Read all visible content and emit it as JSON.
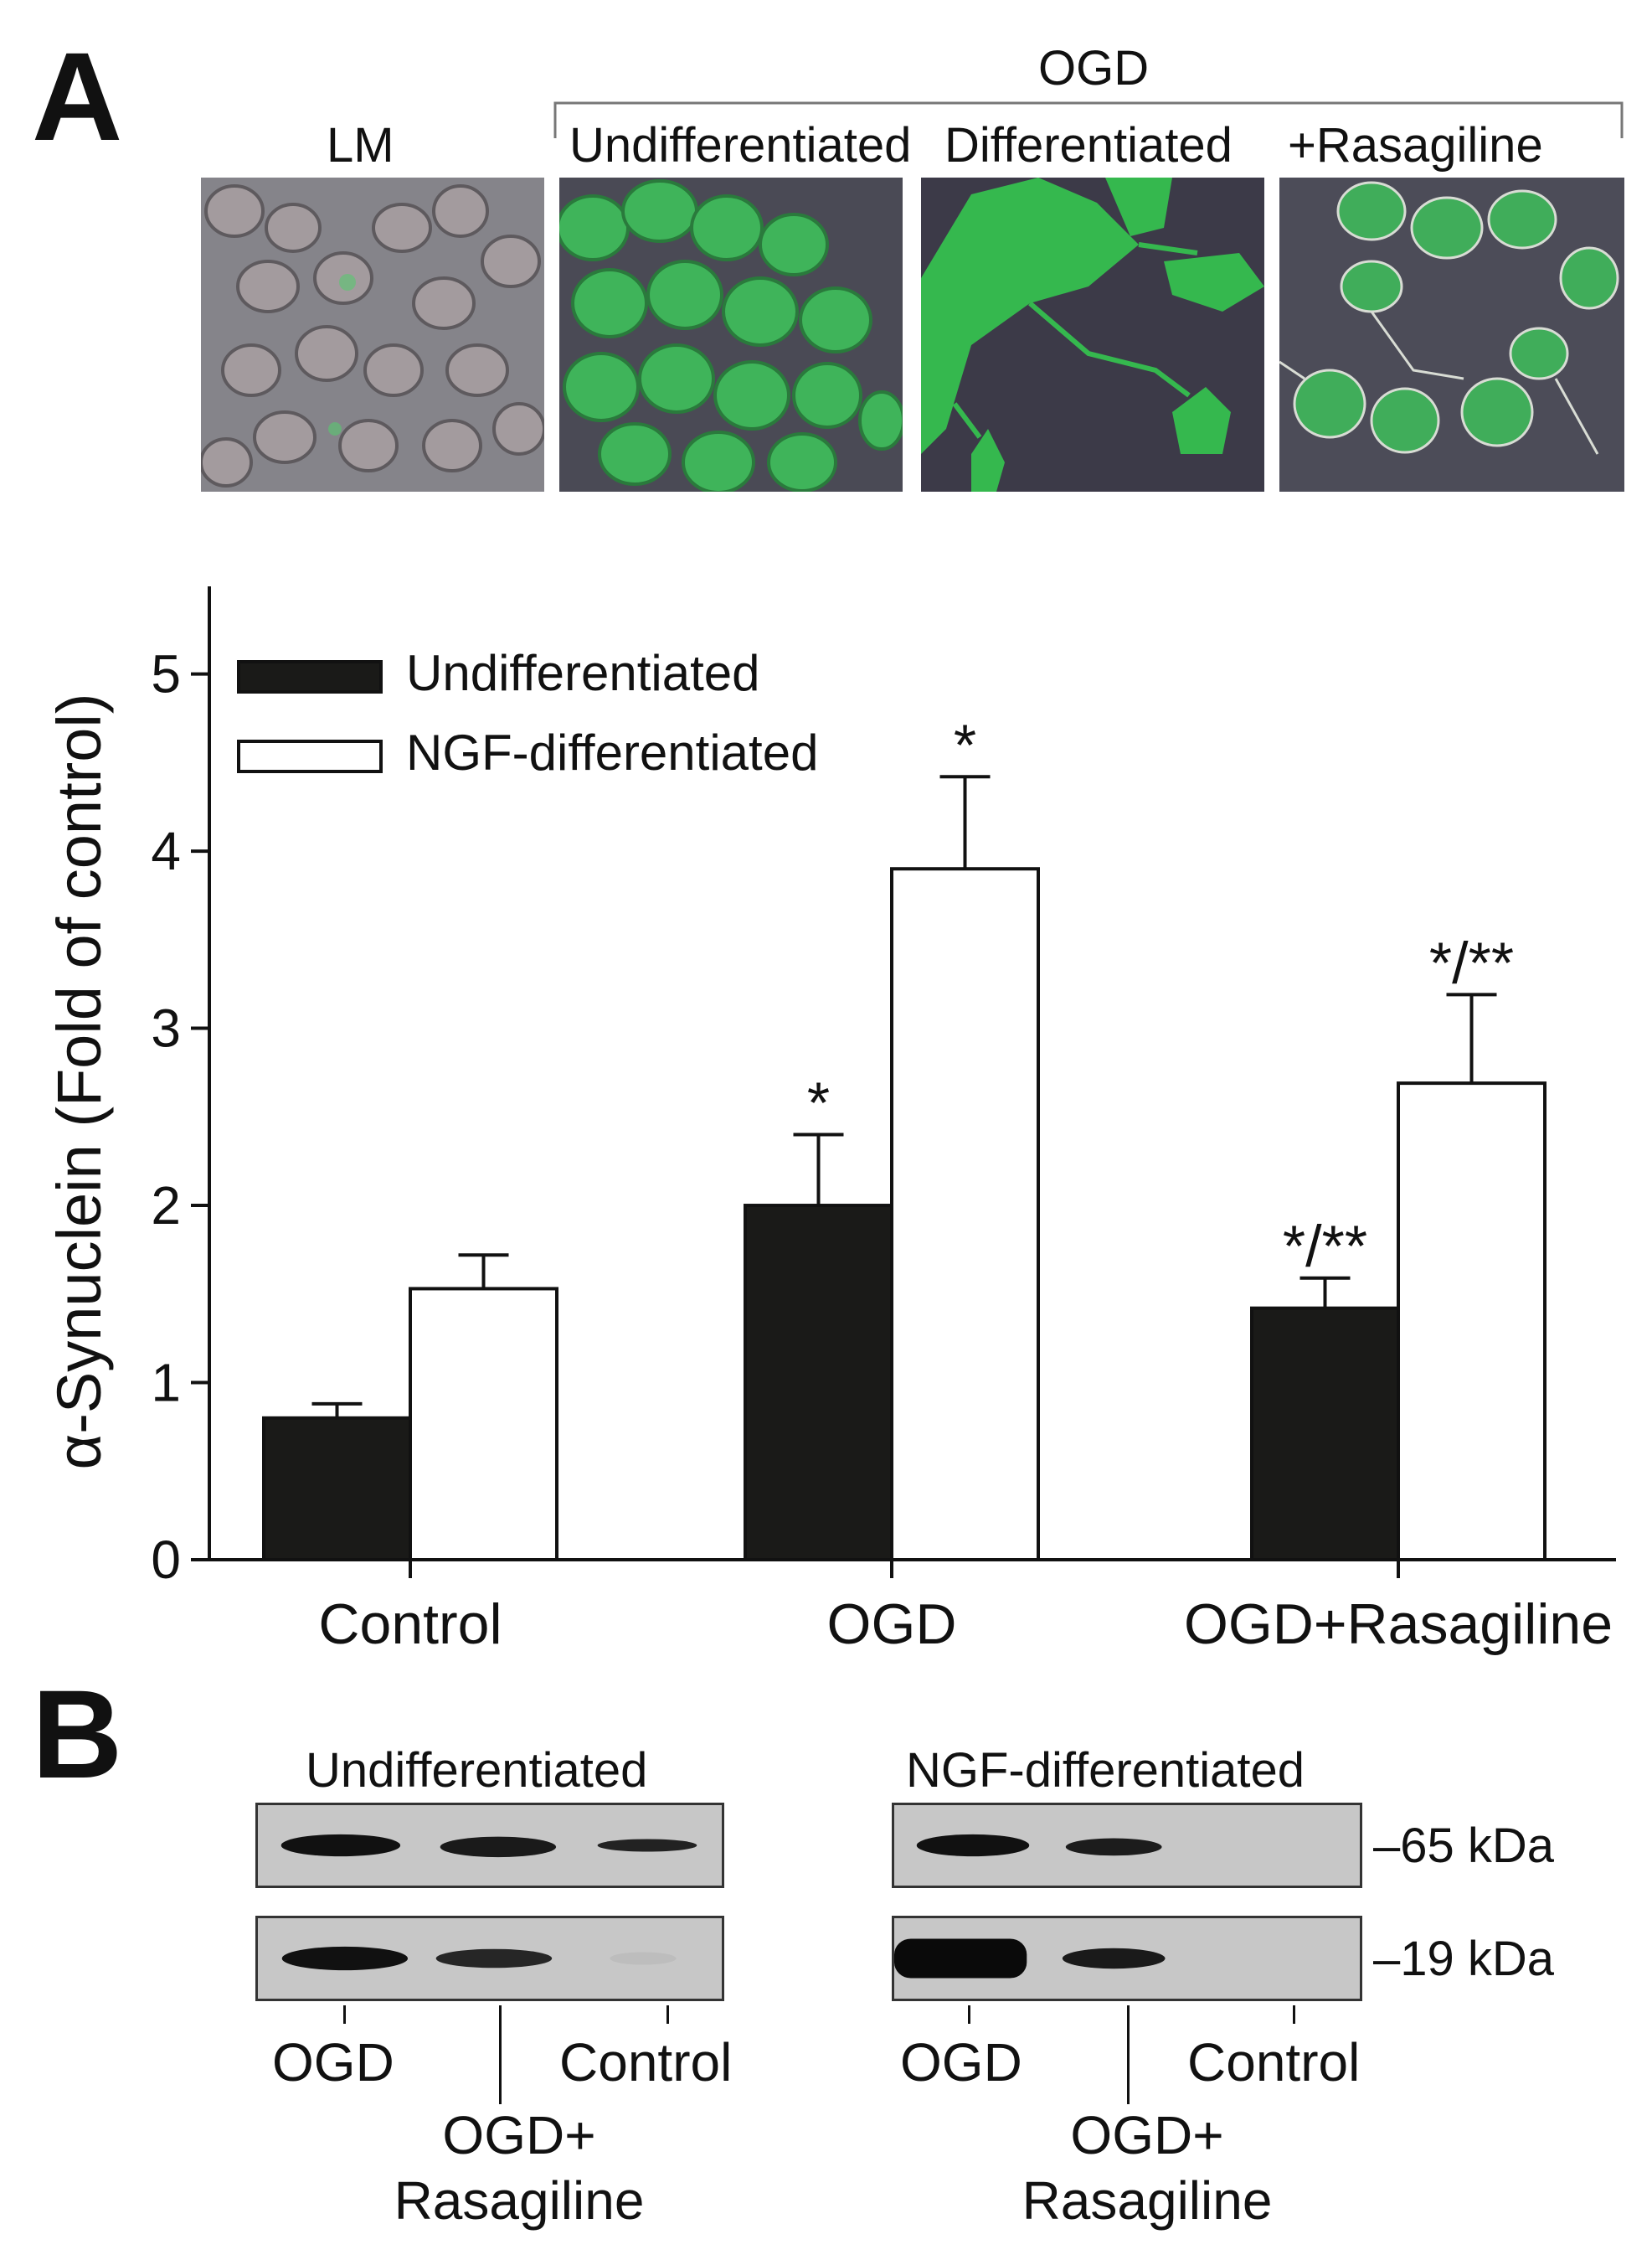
{
  "panel_a": {
    "letter": "A",
    "image_labels": {
      "lm": "LM",
      "ogd": "OGD",
      "undifferentiated": "Undifferentiated",
      "differentiated": "Differentiated",
      "rasagiline": "+Rasagiline"
    }
  },
  "panel_b": {
    "letter": "B",
    "blot_left_title": "Undifferentiated",
    "blot_right_title": "NGF-differentiated",
    "marker_65": "–65 kDa",
    "marker_19": "–19 kDa",
    "lane_labels": {
      "ogd": "OGD",
      "ogd_ras_1": "OGD+",
      "ogd_ras_2": "Rasagiline",
      "control": "Control"
    }
  },
  "chart_data": {
    "type": "bar",
    "categories": [
      "Control",
      "OGD",
      "OGD+Rasagiline"
    ],
    "ylabel": "α-Synuclein (Fold of control)",
    "xlabel": "",
    "ylim": [
      0,
      5.4
    ],
    "yticks": [
      0,
      1,
      2,
      3,
      4,
      5
    ],
    "legend_position": "top-left",
    "series": [
      {
        "name": "Undifferentiated",
        "color": "#1a1a18",
        "values": [
          0.8,
          2.0,
          1.42
        ],
        "errors": [
          0.08,
          0.4,
          0.17
        ],
        "annotations": [
          "",
          "*",
          "*/**"
        ]
      },
      {
        "name": "NGF-differentiated",
        "color": "#ffffff",
        "values": [
          1.53,
          3.9,
          2.69
        ],
        "errors": [
          0.19,
          0.52,
          0.5
        ],
        "annotations": [
          "",
          "*",
          "*/**"
        ]
      }
    ]
  }
}
